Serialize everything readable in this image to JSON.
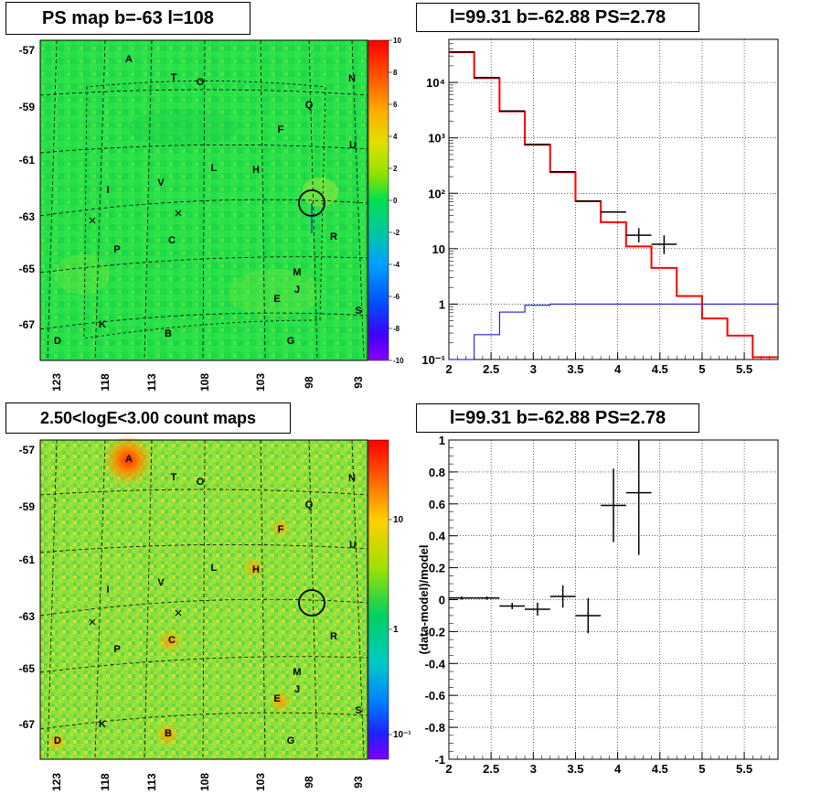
{
  "colors": {
    "histo_main": "#ff0000",
    "histo_data": "#000000",
    "histo_bg": "#0000cc",
    "map_green": "#1ee24a"
  },
  "panels": {
    "ps_map": {
      "title": "PS map b=-63 l=108",
      "y_ticks": [
        "-57",
        "-59",
        "-61",
        "-63",
        "-65",
        "-67"
      ],
      "x_ticks": [
        "123",
        "118",
        "113",
        "108",
        "103",
        "98",
        "93"
      ],
      "colorbar_ticks": [
        "10",
        "8",
        "6",
        "4",
        "2",
        "0",
        "-2",
        "-4",
        "-6",
        "-8",
        "-10"
      ]
    },
    "count_map": {
      "title": "2.50<logE<3.00 count maps",
      "y_ticks": [
        "-57",
        "-59",
        "-61",
        "-63",
        "-65",
        "-67"
      ],
      "x_ticks": [
        "123",
        "118",
        "113",
        "108",
        "103",
        "98",
        "93"
      ],
      "colorbar_ticks": [
        "10",
        "1",
        "10⁻¹"
      ]
    },
    "spectrum": {
      "title": "l=99.31 b=-62.88 PS=2.78"
    },
    "residual": {
      "title": "l=99.31 b=-62.88 PS=2.78"
    }
  },
  "source_labels": [
    "A",
    "T",
    "O",
    "N",
    "Q",
    "F",
    "U",
    "L",
    "H",
    "I",
    "V",
    "R",
    "C",
    "P",
    "M",
    "J",
    "E",
    "S",
    "K",
    "B",
    "D",
    "G"
  ],
  "chart_data": [
    {
      "type": "line",
      "panel": "spectrum",
      "title": "l=99.31 b=-62.88 PS=2.78",
      "xlim": [
        2,
        5.9
      ],
      "ylim": [
        0.1,
        60000
      ],
      "log_y": true,
      "grid": true,
      "x_ticks": [
        "2",
        "2.5",
        "3",
        "3.5",
        "4",
        "4.5",
        "5",
        "5.5"
      ],
      "y_ticks": [
        "10⁻¹",
        "1",
        "10",
        "10²",
        "10³",
        "10⁴"
      ],
      "series": [
        {
          "style": "step",
          "edges": [
            2.0,
            2.3,
            2.6,
            2.9,
            3.2,
            3.5,
            3.8,
            4.1,
            4.4,
            4.7,
            5.0,
            5.3,
            5.6,
            5.9
          ],
          "values": [
            35000,
            12000,
            3000,
            750,
            240,
            72,
            30,
            11,
            4.5,
            1.4,
            0.55,
            0.27,
            0.11
          ]
        },
        {
          "style": "step",
          "edges": [
            2.0,
            2.3,
            2.6,
            2.9,
            3.2,
            3.5,
            3.8,
            4.1,
            4.4,
            4.7,
            5.0,
            5.3,
            5.6,
            5.9
          ],
          "values": [
            0.1,
            0.28,
            0.72,
            0.95,
            1.0,
            1.0,
            1.0,
            1.0,
            1.0,
            1.0,
            1.0,
            1.0,
            1.0
          ]
        },
        {
          "style": "points",
          "x": [
            2.15,
            2.45,
            2.75,
            3.05,
            3.35,
            3.65,
            3.95,
            4.25,
            4.55
          ],
          "y": [
            35500,
            12200,
            3050,
            760,
            245,
            72,
            46,
            17.5,
            12
          ],
          "xerr": [
            0.15,
            0.15,
            0.15,
            0.15,
            0.15,
            0.15,
            0.15,
            0.15,
            0.15
          ],
          "yerr_lo": [
            0,
            0,
            0,
            0,
            0,
            0,
            0,
            4.5,
            4
          ],
          "yerr_hi": [
            0,
            0,
            0,
            0,
            0,
            0,
            0,
            6,
            5.5
          ]
        }
      ]
    },
    {
      "type": "scatter",
      "panel": "residual",
      "title": "l=99.31 b=-62.88 PS=2.78",
      "ylabel": "(data-model)/model",
      "xlim": [
        2,
        5.9
      ],
      "ylim": [
        -1,
        1
      ],
      "grid": true,
      "x_ticks": [
        "2",
        "2.5",
        "3",
        "3.5",
        "4",
        "4.5",
        "5",
        "5.5"
      ],
      "y_ticks": [
        "-1",
        "-0.8",
        "-0.6",
        "-0.4",
        "-0.2",
        "0",
        "0.2",
        "0.4",
        "0.6",
        "0.8",
        "1"
      ],
      "series": [
        {
          "x": [
            2.15,
            2.45,
            2.75,
            3.05,
            3.35,
            3.65,
            3.95,
            4.25
          ],
          "y": [
            0.01,
            0.01,
            -0.04,
            -0.06,
            0.02,
            -0.1,
            0.59,
            0.67
          ],
          "xerr": [
            0.15,
            0.15,
            0.15,
            0.15,
            0.15,
            0.15,
            0.15,
            0.15
          ],
          "yerr": [
            0.01,
            0.01,
            0.02,
            0.04,
            0.07,
            0.11,
            0.23,
            0.39
          ]
        }
      ]
    }
  ]
}
